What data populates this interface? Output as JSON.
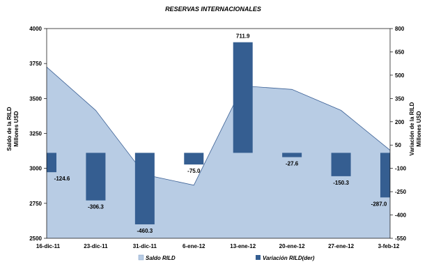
{
  "chart_data": {
    "type": "bar",
    "title": "RESERVAS INTERNACIONALES",
    "categories": [
      "16-dic-11",
      "23-dic-11",
      "31-dic-11",
      "6-ene-12",
      "13-ene-12",
      "20-ene-12",
      "27-ene-12",
      "3-feb-12"
    ],
    "left_axis": {
      "label_lines": [
        "Saldo de la RILD",
        "Millones USD"
      ],
      "ylim": [
        2500,
        4000
      ],
      "ticks": [
        2500,
        2750,
        3000,
        3250,
        3500,
        3750,
        4000
      ]
    },
    "right_axis": {
      "label_lines": [
        "Variación de la RILD",
        "Millones USD"
      ],
      "ylim": [
        -550,
        800
      ],
      "ticks": [
        -550,
        -400,
        -250,
        -100,
        50,
        200,
        350,
        500,
        650,
        800
      ]
    },
    "series": [
      {
        "name": "Saldo RILD",
        "type": "area",
        "axis": "left",
        "color": "#b8cce4",
        "line_color": "#3a5f94",
        "values": [
          3725,
          3415,
          2955,
          2880,
          3590,
          3565,
          3415,
          3130
        ]
      },
      {
        "name": "Variación RILD(der)",
        "type": "bar",
        "axis": "right",
        "color": "#355e91",
        "values": [
          -124.6,
          -306.3,
          -460.3,
          -75.0,
          711.9,
          -27.6,
          -150.3,
          -287.0
        ],
        "data_labels": [
          "-124.6",
          "-306.3",
          "-460.3",
          "-75.0",
          "711.9",
          "-27.6",
          "-150.3",
          "-287.0"
        ]
      }
    ],
    "grid": false,
    "legend_position": "bottom"
  }
}
